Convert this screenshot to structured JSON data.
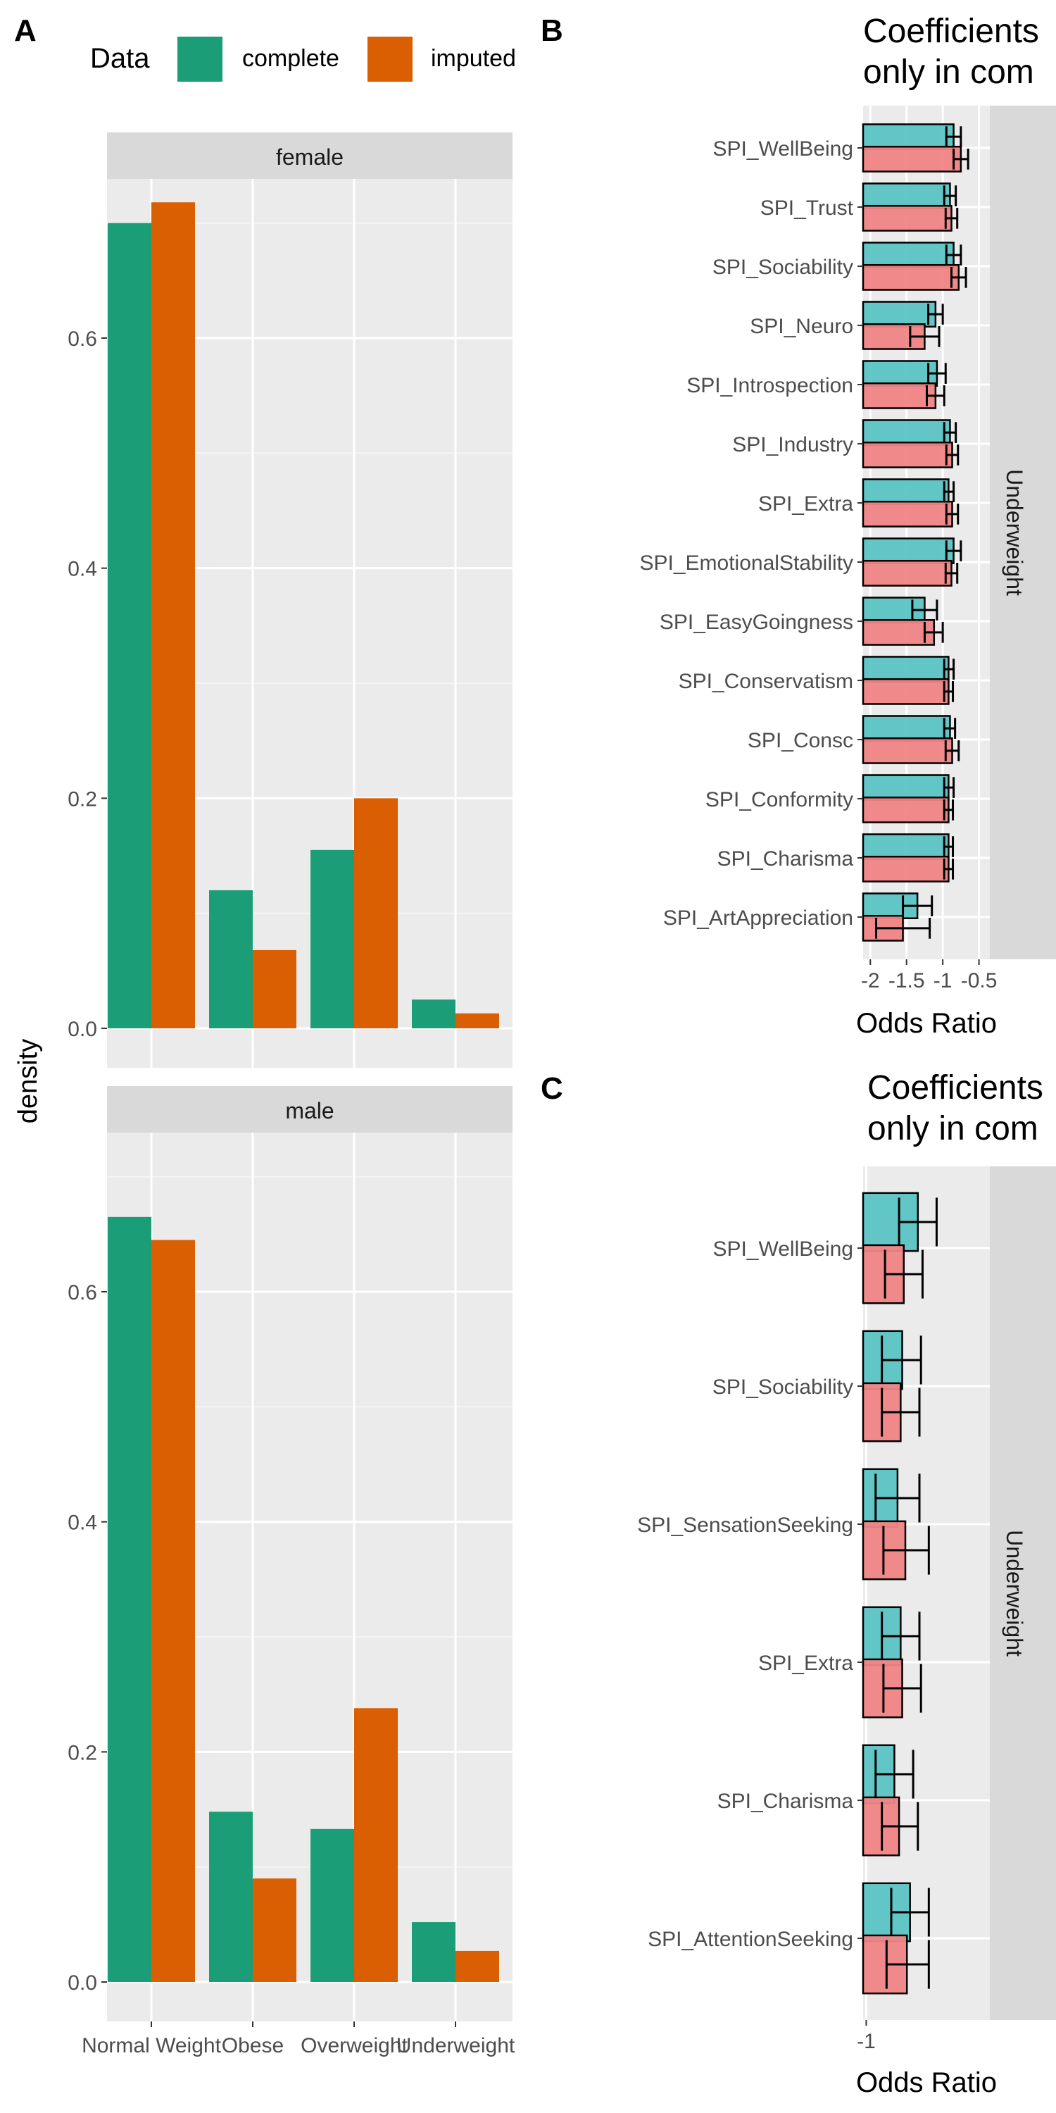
{
  "panel_labels": {
    "a": "A",
    "b": "B",
    "c": "C"
  },
  "legend": {
    "title": "Data",
    "items": [
      {
        "label": "complete",
        "color": "#1b9e77"
      },
      {
        "label": "imputed",
        "color": "#d95f02"
      }
    ]
  },
  "panel_b": {
    "title_line1": "Coefficients",
    "title_line2": "only in com",
    "strip": "Underweight",
    "xlabel": "Odds Ratio"
  },
  "panel_c": {
    "title_line1": "Coefficients",
    "title_line2": "only in com",
    "strip": "Underweight",
    "xlabel": "Odds Ratio"
  },
  "chart_data": [
    {
      "type": "bar",
      "panel": "A",
      "ylabel": "density",
      "xlabel": "",
      "facets": [
        "female",
        "male"
      ],
      "categories": [
        "Normal Weight",
        "Obese",
        "Overweight",
        "Underweight"
      ],
      "ylim": [
        0,
        0.72
      ],
      "yticks": [
        0.0,
        0.2,
        0.4,
        0.6
      ],
      "ytick_labels": [
        "0.0",
        "0.2",
        "0.4",
        "0.6"
      ],
      "series": [
        {
          "name": "complete",
          "female": [
            0.7,
            0.12,
            0.155,
            0.025
          ],
          "male": [
            0.665,
            0.148,
            0.133,
            0.052
          ]
        },
        {
          "name": "imputed",
          "female": [
            0.718,
            0.068,
            0.2,
            0.013
          ],
          "male": [
            0.645,
            0.09,
            0.238,
            0.027
          ]
        }
      ]
    },
    {
      "type": "bar",
      "panel": "B",
      "orientation": "horizontal",
      "xlabel": "Odds Ratio",
      "xlim": [
        -2.1,
        -0.35
      ],
      "xticks": [
        -2,
        -1.5,
        -1,
        -0.5
      ],
      "xtick_labels": [
        "-2",
        "-1.5",
        "-1",
        "-0.5"
      ],
      "bar_base": -2.1,
      "categories": [
        "SPI_WellBeing",
        "SPI_Trust",
        "SPI_Sociability",
        "SPI_Neuro",
        "SPI_Introspection",
        "SPI_Industry",
        "SPI_Extra",
        "SPI_EmotionalStability",
        "SPI_EasyGoingness",
        "SPI_Conservatism",
        "SPI_Consc",
        "SPI_Conformity",
        "SPI_Charisma",
        "SPI_ArtAppreciation"
      ],
      "series": [
        {
          "name": "complete",
          "color": "#5bc4c4",
          "values": [
            -0.85,
            -0.9,
            -0.85,
            -1.1,
            -1.08,
            -0.9,
            -0.92,
            -0.85,
            -1.25,
            -0.92,
            -0.9,
            -0.92,
            -0.92,
            -1.35
          ],
          "err_low": [
            -0.95,
            -0.98,
            -0.95,
            -1.2,
            -1.2,
            -0.98,
            -0.98,
            -0.95,
            -1.42,
            -0.98,
            -0.98,
            -0.98,
            -0.98,
            -1.55
          ],
          "err_high": [
            -0.75,
            -0.82,
            -0.75,
            -1.0,
            -0.96,
            -0.82,
            -0.85,
            -0.75,
            -1.08,
            -0.85,
            -0.83,
            -0.85,
            -0.86,
            -1.15
          ]
        },
        {
          "name": "imputed",
          "color": "#f08585",
          "values": [
            -0.75,
            -0.88,
            -0.78,
            -1.25,
            -1.1,
            -0.87,
            -0.87,
            -0.88,
            -1.12,
            -0.92,
            -0.87,
            -0.92,
            -0.92,
            -1.55
          ],
          "err_low": [
            -0.85,
            -0.96,
            -0.88,
            -1.45,
            -1.22,
            -0.95,
            -0.95,
            -0.96,
            -1.25,
            -0.98,
            -0.96,
            -0.98,
            -0.98,
            -1.92
          ],
          "err_high": [
            -0.65,
            -0.8,
            -0.68,
            -1.05,
            -0.98,
            -0.79,
            -0.79,
            -0.8,
            -1.0,
            -0.86,
            -0.78,
            -0.86,
            -0.86,
            -1.18
          ]
        }
      ]
    },
    {
      "type": "bar",
      "panel": "C",
      "orientation": "horizontal",
      "xlabel": "Odds Ratio",
      "xlim": [
        -1.02,
        -0.21
      ],
      "xticks": [
        -1
      ],
      "xtick_labels": [
        "-1"
      ],
      "bar_base": -1.02,
      "categories": [
        "SPI_WellBeing",
        "SPI_Sociability",
        "SPI_SensationSeeking",
        "SPI_Extra",
        "SPI_Charisma",
        "SPI_AttentionSeeking"
      ],
      "series": [
        {
          "name": "complete",
          "color": "#5bc4c4",
          "values": [
            -0.67,
            -0.77,
            -0.8,
            -0.78,
            -0.82,
            -0.72
          ],
          "err_low": [
            -0.79,
            -0.9,
            -0.94,
            -0.9,
            -0.94,
            -0.84
          ],
          "err_high": [
            -0.55,
            -0.65,
            -0.66,
            -0.66,
            -0.7,
            -0.6
          ]
        },
        {
          "name": "imputed",
          "color": "#f08585",
          "values": [
            -0.76,
            -0.78,
            -0.75,
            -0.77,
            -0.79,
            -0.74
          ],
          "err_low": [
            -0.88,
            -0.9,
            -0.89,
            -0.89,
            -0.9,
            -0.87
          ],
          "err_high": [
            -0.64,
            -0.66,
            -0.6,
            -0.65,
            -0.67,
            -0.6
          ]
        }
      ]
    }
  ]
}
